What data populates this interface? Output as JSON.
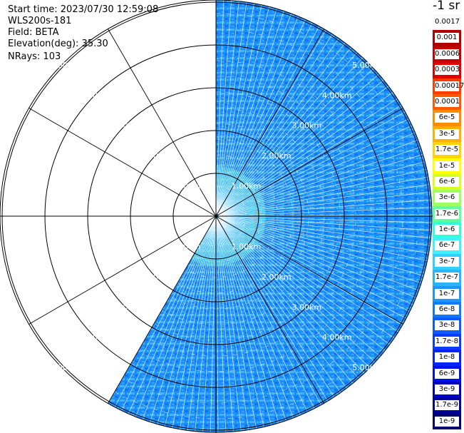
{
  "header": {
    "start_time": "Start time: 2023/07/30 12:59:08",
    "instrument": "WLS200s-181",
    "field": "Field: BETA",
    "elevation": "Elevation(deg): 35.30",
    "nrays": "NRays: 103"
  },
  "chart_data": {
    "type": "heatmap",
    "projection": "polar-ppi",
    "field": "BETA",
    "units": "-1 sr",
    "colorbar_labels": [
      "0.0017",
      "0.001",
      "0.0006",
      "0.0003",
      "0.00017",
      "0.0001",
      "6e-5",
      "3e-5",
      "1.7e-5",
      "1e-5",
      "6e-6",
      "3e-6",
      "1.7e-6",
      "1e-6",
      "6e-7",
      "3e-7",
      "1.7e-7",
      "1e-7",
      "6e-8",
      "3e-8",
      "1.7e-8",
      "1e-8",
      "6e-9",
      "3e-9",
      "1.7e-9",
      "1e-9"
    ],
    "colorbar_colors": [
      "#f8f8f8",
      "#b00000",
      "#c80000",
      "#e00000",
      "#ff3a00",
      "#ff5a00",
      "#ff8c00",
      "#ffb000",
      "#ffd400",
      "#ffff00",
      "#d8ff20",
      "#a0ff60",
      "#60ffa0",
      "#30ffd8",
      "#40f0ff",
      "#30d0ff",
      "#28b4ff",
      "#1e96ff",
      "#1478ff",
      "#105aff",
      "#0a3cff",
      "#0622ff",
      "#0010e8",
      "#0000c0",
      "#000098",
      "#000070"
    ],
    "range_rings_km": [
      1,
      2,
      3,
      4,
      5
    ],
    "ring_labels": [
      "1.00km",
      "2.00km",
      "3.00km",
      "4.00km",
      "5.00km"
    ],
    "ring_label_count": 5,
    "max_range_km": 5.1,
    "spoke_angles_deg": [
      0,
      30,
      60,
      90,
      120,
      150,
      180,
      210,
      240,
      270,
      300,
      330
    ],
    "missing_sector_deg": [
      -150,
      0
    ],
    "nrays": 103
  }
}
